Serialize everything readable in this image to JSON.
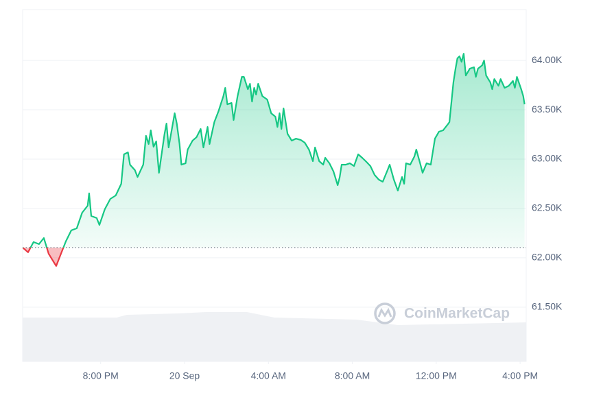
{
  "chart_data": {
    "type": "line",
    "watermark": "CoinMarketCap",
    "x": [
      16.28,
      16.54,
      16.8,
      17.06,
      17.29,
      17.52,
      17.78,
      17.88,
      18.11,
      18.34,
      18.6,
      18.86,
      19.12,
      19.38,
      19.45,
      19.55,
      19.81,
      19.94,
      20.2,
      20.46,
      20.72,
      20.98,
      21.11,
      21.3,
      21.4,
      21.63,
      21.76,
      22.03,
      22.16,
      22.29,
      22.39,
      22.52,
      22.65,
      22.78,
      23.04,
      23.14,
      23.24,
      23.43,
      23.53,
      23.63,
      23.76,
      23.85,
      24.05,
      24.15,
      24.38,
      24.57,
      24.77,
      24.9,
      25.1,
      25.19,
      25.42,
      25.62,
      25.85,
      25.94,
      26.04,
      26.24,
      26.34,
      26.53,
      26.73,
      26.83,
      27.02,
      27.12,
      27.22,
      27.32,
      27.41,
      27.51,
      27.71,
      27.94,
      28.13,
      28.33,
      28.43,
      28.53,
      28.62,
      28.72,
      28.91,
      29.11,
      29.31,
      29.54,
      29.73,
      29.93,
      30.12,
      30.22,
      30.42,
      30.61,
      30.71,
      30.91,
      31.1,
      31.3,
      31.4,
      31.49,
      31.69,
      31.88,
      32.08,
      32.28,
      32.47,
      32.67,
      32.86,
      33.06,
      33.26,
      33.45,
      33.68,
      33.78,
      33.98,
      34.17,
      34.37,
      34.47,
      34.56,
      34.76,
      34.96,
      35.05,
      35.25,
      35.35,
      35.54,
      35.74,
      35.94,
      36.13,
      36.33,
      36.53,
      36.63,
      36.72,
      36.82,
      36.92,
      37.01,
      37.11,
      37.21,
      37.31,
      37.41,
      37.6,
      37.8,
      37.89,
      37.99,
      38.19,
      38.28,
      38.38,
      38.58,
      38.67,
      38.77,
      38.97,
      39.07,
      39.26,
      39.46,
      39.66,
      39.75,
      39.85,
      40.05,
      40.15,
      40.21
    ],
    "series": [
      {
        "color": "#16c784",
        "values": [
          62104,
          62056,
          62160,
          62139,
          62201,
          62042,
          61951,
          61917,
          62042,
          62167,
          62278,
          62299,
          62458,
          62528,
          62653,
          62424,
          62403,
          62333,
          62493,
          62597,
          62632,
          62750,
          63049,
          63069,
          62944,
          62889,
          62819,
          62944,
          63236,
          63153,
          63292,
          63125,
          63180,
          62861,
          63250,
          63361,
          63118,
          63347,
          63465,
          63361,
          63153,
          62944,
          62958,
          63097,
          63187,
          63222,
          63306,
          63118,
          63326,
          63153,
          63375,
          63486,
          63639,
          63722,
          63555,
          63569,
          63396,
          63639,
          63833,
          63833,
          63708,
          63764,
          63583,
          63722,
          63653,
          63764,
          63639,
          63604,
          63465,
          63430,
          63326,
          63465,
          63306,
          63514,
          63257,
          63187,
          63208,
          63194,
          63167,
          63097,
          62979,
          63118,
          62979,
          62944,
          63014,
          62958,
          62875,
          62736,
          62819,
          62944,
          62944,
          62958,
          62930,
          63049,
          63014,
          62972,
          62930,
          62840,
          62792,
          62771,
          62889,
          62944,
          62792,
          62681,
          62819,
          62750,
          62958,
          62944,
          63028,
          63097,
          62944,
          62861,
          62958,
          62944,
          63208,
          63278,
          63292,
          63347,
          63375,
          63569,
          63778,
          63917,
          64021,
          64042,
          63986,
          64069,
          63847,
          63917,
          63931,
          63833,
          63917,
          63951,
          64000,
          63847,
          63778,
          63708,
          63812,
          63743,
          63812,
          63722,
          63743,
          63792,
          63722,
          63833,
          63708,
          63639,
          63555
        ]
      }
    ],
    "reference_value": 62104,
    "below_color": "#ea3943",
    "xlim": [
      16.28,
      40.29
    ],
    "ylim": [
      60950,
      64515
    ],
    "xticks": [
      {
        "value": 20,
        "label": "8:00 PM"
      },
      {
        "value": 24,
        "label": "20 Sep"
      },
      {
        "value": 28,
        "label": "4:00 AM"
      },
      {
        "value": 32,
        "label": "8:00 AM"
      },
      {
        "value": 36,
        "label": "12:00 PM"
      },
      {
        "value": 40,
        "label": "4:00 PM"
      }
    ],
    "yticks": [
      {
        "value": 61500,
        "label": "61.50K"
      },
      {
        "value": 62000,
        "label": "62.00K"
      },
      {
        "value": 62500,
        "label": "62.50K"
      },
      {
        "value": 63000,
        "label": "63.00K"
      },
      {
        "value": 63500,
        "label": "63.50K"
      },
      {
        "value": 64000,
        "label": "64.00K"
      }
    ],
    "grid": true
  }
}
